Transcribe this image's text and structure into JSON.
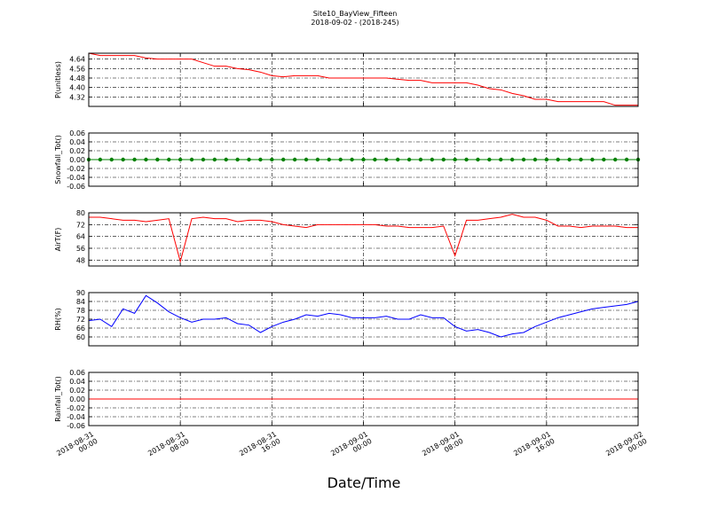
{
  "chart_data": {
    "title": "Site10_BayView_Fifteen",
    "subtitle": "2018-09-02 - (2018-245)",
    "xlabel": "Date/Time",
    "x": [
      0,
      1,
      2,
      3,
      4,
      5,
      6,
      7,
      8,
      9,
      10,
      11,
      12,
      13,
      14,
      15,
      16,
      17,
      18,
      19,
      20,
      21,
      22,
      23,
      24,
      25,
      26,
      27,
      28,
      29,
      30,
      31,
      32,
      33,
      34,
      35,
      36,
      37,
      38,
      39,
      40,
      41,
      42,
      43,
      44,
      45,
      46,
      47,
      48
    ],
    "xlim": [
      0,
      48
    ],
    "xticks": [
      {
        "value": 0,
        "label": "2018-08-31\n00:00"
      },
      {
        "value": 8,
        "label": "2018-08-31\n08:00"
      },
      {
        "value": 16,
        "label": "2018-08-31\n16:00"
      },
      {
        "value": 24,
        "label": "2018-09-01\n00:00"
      },
      {
        "value": 32,
        "label": "2018-09-01\n08:00"
      },
      {
        "value": 40,
        "label": "2018-09-01\n16:00"
      },
      {
        "value": 48,
        "label": "2018-09-02\n00:00"
      }
    ],
    "grid": true,
    "panels": [
      {
        "type": "line",
        "ylabel": "P(unitless)",
        "color": "#ff0000",
        "ylim": [
          4.24,
          4.69
        ],
        "yticks": [
          4.32,
          {
            "value": 4.4,
            "label": "4.40"
          },
          4.48,
          4.56,
          4.64
        ],
        "values": [
          4.69,
          4.67,
          4.67,
          4.67,
          4.67,
          4.65,
          4.64,
          4.64,
          4.64,
          4.64,
          4.61,
          4.58,
          4.58,
          4.56,
          4.55,
          4.53,
          4.5,
          4.49,
          4.5,
          4.5,
          4.5,
          4.48,
          4.48,
          4.48,
          4.48,
          4.48,
          4.48,
          4.47,
          4.46,
          4.46,
          4.44,
          4.44,
          4.44,
          4.44,
          4.42,
          4.39,
          4.38,
          4.35,
          4.33,
          4.3,
          4.3,
          4.28,
          4.28,
          4.28,
          4.28,
          4.28,
          4.25,
          4.25,
          4.25
        ]
      },
      {
        "type": "line",
        "ylabel": "Snowfall_Tot()",
        "color": "#008000",
        "marker": "o",
        "ylim": [
          -0.06,
          0.06
        ],
        "yticks": [
          -0.06,
          -0.04,
          -0.02,
          {
            "value": 0,
            "label": "0.00"
          },
          0.02,
          0.04,
          0.06
        ],
        "values": [
          0,
          0,
          0,
          0,
          0,
          0,
          0,
          0,
          0,
          0,
          0,
          0,
          0,
          0,
          0,
          0,
          0,
          0,
          0,
          0,
          0,
          0,
          0,
          0,
          0,
          0,
          0,
          0,
          0,
          0,
          0,
          0,
          0,
          0,
          0,
          0,
          0,
          0,
          0,
          0,
          0,
          0,
          0,
          0,
          0,
          0,
          0,
          0,
          0
        ]
      },
      {
        "type": "line",
        "ylabel": "AirT(F)",
        "color": "#ff0000",
        "ylim": [
          44,
          80
        ],
        "yticks": [
          48,
          56,
          64,
          72,
          80
        ],
        "values": [
          77,
          77,
          76,
          75,
          75,
          74,
          75,
          76,
          47,
          76,
          77,
          76,
          76,
          74,
          75,
          75,
          74,
          72,
          71,
          70,
          72,
          72,
          72,
          72,
          72,
          72,
          71,
          71,
          70,
          70,
          70,
          71,
          51,
          75,
          75,
          76,
          77,
          79,
          77,
          77,
          75,
          71,
          71,
          70,
          71,
          71,
          71,
          70,
          70
        ]
      },
      {
        "type": "line",
        "ylabel": "RH(%)",
        "color": "#0000ff",
        "ylim": [
          54,
          90
        ],
        "yticks": [
          60,
          66,
          72,
          78,
          84,
          90
        ],
        "values": [
          71,
          72,
          67,
          79,
          76,
          88,
          83,
          77,
          73,
          70,
          72,
          72,
          73,
          69,
          68,
          63,
          67,
          70,
          72,
          75,
          74,
          76,
          75,
          73,
          73,
          73,
          74,
          72,
          72,
          75,
          73,
          73,
          67,
          64,
          65,
          63,
          60,
          62,
          63,
          67,
          70,
          73,
          75,
          77,
          79,
          80,
          81,
          82,
          84
        ]
      },
      {
        "type": "line",
        "ylabel": "Rainfall_Tot()",
        "color": "#ff0000",
        "ylim": [
          -0.06,
          0.06
        ],
        "yticks": [
          -0.06,
          -0.04,
          -0.02,
          {
            "value": 0,
            "label": "0.00"
          },
          0.02,
          0.04,
          0.06
        ],
        "values": [
          0,
          0,
          0,
          0,
          0,
          0,
          0,
          0,
          0,
          0,
          0,
          0,
          0,
          0,
          0,
          0,
          0,
          0,
          0,
          0,
          0,
          0,
          0,
          0,
          0,
          0,
          0,
          0,
          0,
          0,
          0,
          0,
          0,
          0,
          0,
          0,
          0,
          0,
          0,
          0,
          0,
          0,
          0,
          0,
          0,
          0,
          0,
          0,
          0
        ]
      }
    ]
  }
}
